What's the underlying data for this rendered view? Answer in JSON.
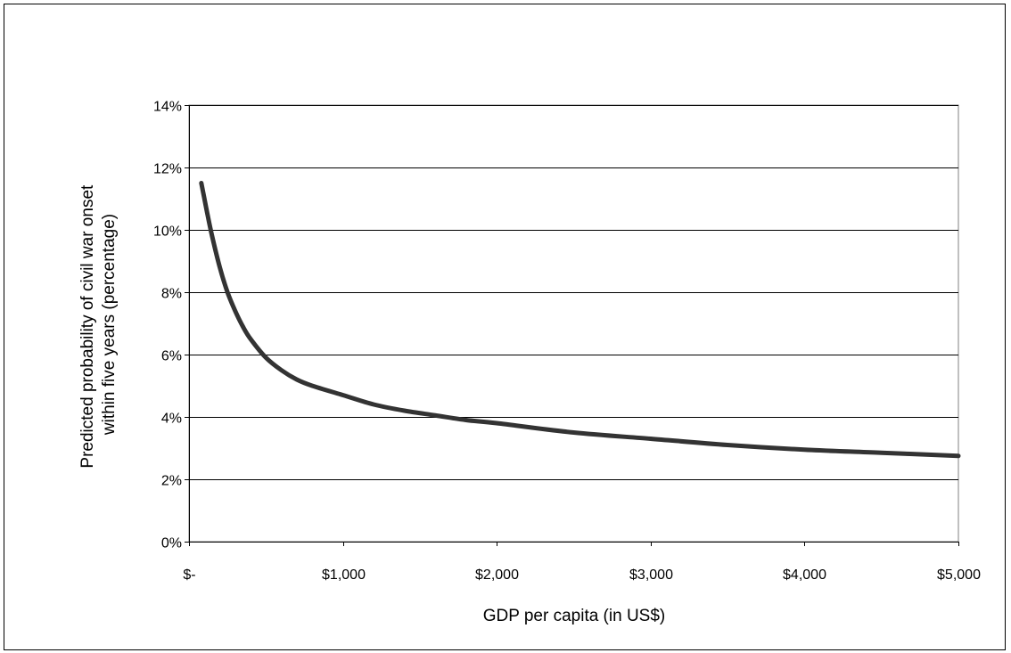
{
  "chart_data": {
    "type": "line",
    "title": "",
    "xlabel": "GDP per capita (in US$)",
    "ylabel_lines": [
      "Predicted probability of civil war onset",
      "within five years (percentage)"
    ],
    "xlim": [
      0,
      5000
    ],
    "ylim": [
      0,
      14
    ],
    "x_ticks": [
      0,
      1000,
      2000,
      3000,
      4000,
      5000
    ],
    "x_tick_labels": [
      "$-",
      "$1,000",
      "$2,000",
      "$3,000",
      "$4,000",
      "$5,000"
    ],
    "y_ticks": [
      0,
      2,
      4,
      6,
      8,
      10,
      12,
      14
    ],
    "y_tick_labels": [
      "0%",
      "2%",
      "4%",
      "6%",
      "8%",
      "10%",
      "12%",
      "14%"
    ],
    "grid": "horizontal",
    "legend": "none",
    "line_color": "#333333",
    "series": [
      {
        "x": [
          80,
          100,
          120,
          150,
          200,
          250,
          300,
          350,
          400,
          500,
          600,
          700,
          800,
          1000,
          1200,
          1400,
          1600,
          1800,
          2000,
          2500,
          3000,
          3500,
          4000,
          4500,
          5000
        ],
        "y": [
          11.5,
          11.0,
          10.5,
          9.8,
          8.8,
          8.0,
          7.4,
          6.9,
          6.5,
          5.9,
          5.5,
          5.2,
          5.0,
          4.7,
          4.4,
          4.2,
          4.05,
          3.9,
          3.8,
          3.5,
          3.3,
          3.1,
          2.95,
          2.85,
          2.75
        ]
      }
    ]
  }
}
